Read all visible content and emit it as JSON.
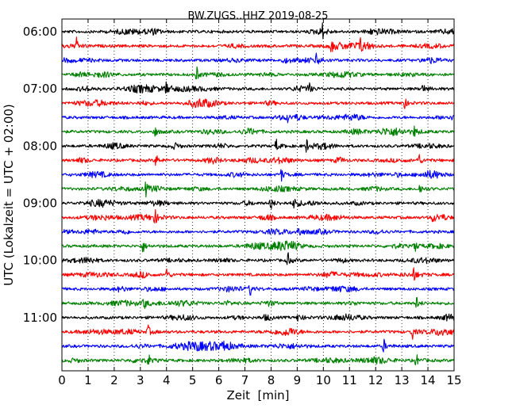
{
  "chart_data": {
    "type": "line",
    "title": "BW.ZUGS..HHZ 2019-08-25",
    "xlabel": "Zeit  [min]",
    "ylabel": "UTC (Lokalzeit = UTC + 02:00)",
    "xlim": [
      0,
      15
    ],
    "x_ticks": [
      "0",
      "1",
      "2",
      "3",
      "4",
      "5",
      "6",
      "7",
      "8",
      "9",
      "10",
      "11",
      "12",
      "13",
      "14",
      "15"
    ],
    "y_ticks": [
      "06:00",
      "07:00",
      "08:00",
      "09:00",
      "10:00",
      "11:00"
    ],
    "grid_x": "dotted",
    "grid_y": false,
    "trace_minutes": 15,
    "trace_colors": [
      "#000000",
      "#ff0000",
      "#0000ff",
      "#008000"
    ],
    "series": [
      {
        "start": "06:00",
        "events": [
          9.95
        ]
      },
      {
        "start": "06:15",
        "events": [
          0.55,
          10.3,
          11.4
        ]
      },
      {
        "start": "06:30",
        "events": [
          9.75
        ]
      },
      {
        "start": "06:45",
        "events": [
          5.15
        ]
      },
      {
        "start": "07:00",
        "events": [
          4.0,
          9.45,
          13.8
        ]
      },
      {
        "start": "07:15",
        "events": [
          13.1
        ]
      },
      {
        "start": "07:30",
        "events": [
          8.6
        ]
      },
      {
        "start": "07:45",
        "events": [
          3.55,
          13.5
        ]
      },
      {
        "start": "08:00",
        "events": [
          8.2,
          9.35
        ]
      },
      {
        "start": "08:15",
        "events": [
          3.6,
          13.65
        ]
      },
      {
        "start": "08:30",
        "events": [
          8.4
        ]
      },
      {
        "start": "08:45",
        "events": [
          3.2,
          13.7
        ]
      },
      {
        "start": "09:00",
        "events": [
          8.0,
          8.9
        ]
      },
      {
        "start": "09:15",
        "events": [
          3.55,
          14.2
        ]
      },
      {
        "start": "09:30",
        "events": [
          9.05
        ]
      },
      {
        "start": "09:45",
        "events": [
          3.1,
          13.5
        ]
      },
      {
        "start": "10:00",
        "events": [
          8.65
        ]
      },
      {
        "start": "10:15",
        "events": [
          4.0,
          13.45
        ]
      },
      {
        "start": "10:30",
        "events": [
          7.2
        ]
      },
      {
        "start": "10:45",
        "events": [
          3.15,
          13.55
        ]
      },
      {
        "start": "11:00",
        "events": [
          9.05
        ]
      },
      {
        "start": "11:15",
        "events": [
          3.3,
          13.4
        ]
      },
      {
        "start": "11:30",
        "events": [
          6.2,
          12.3
        ]
      },
      {
        "start": "11:45",
        "events": [
          3.3,
          13.55
        ]
      }
    ]
  }
}
